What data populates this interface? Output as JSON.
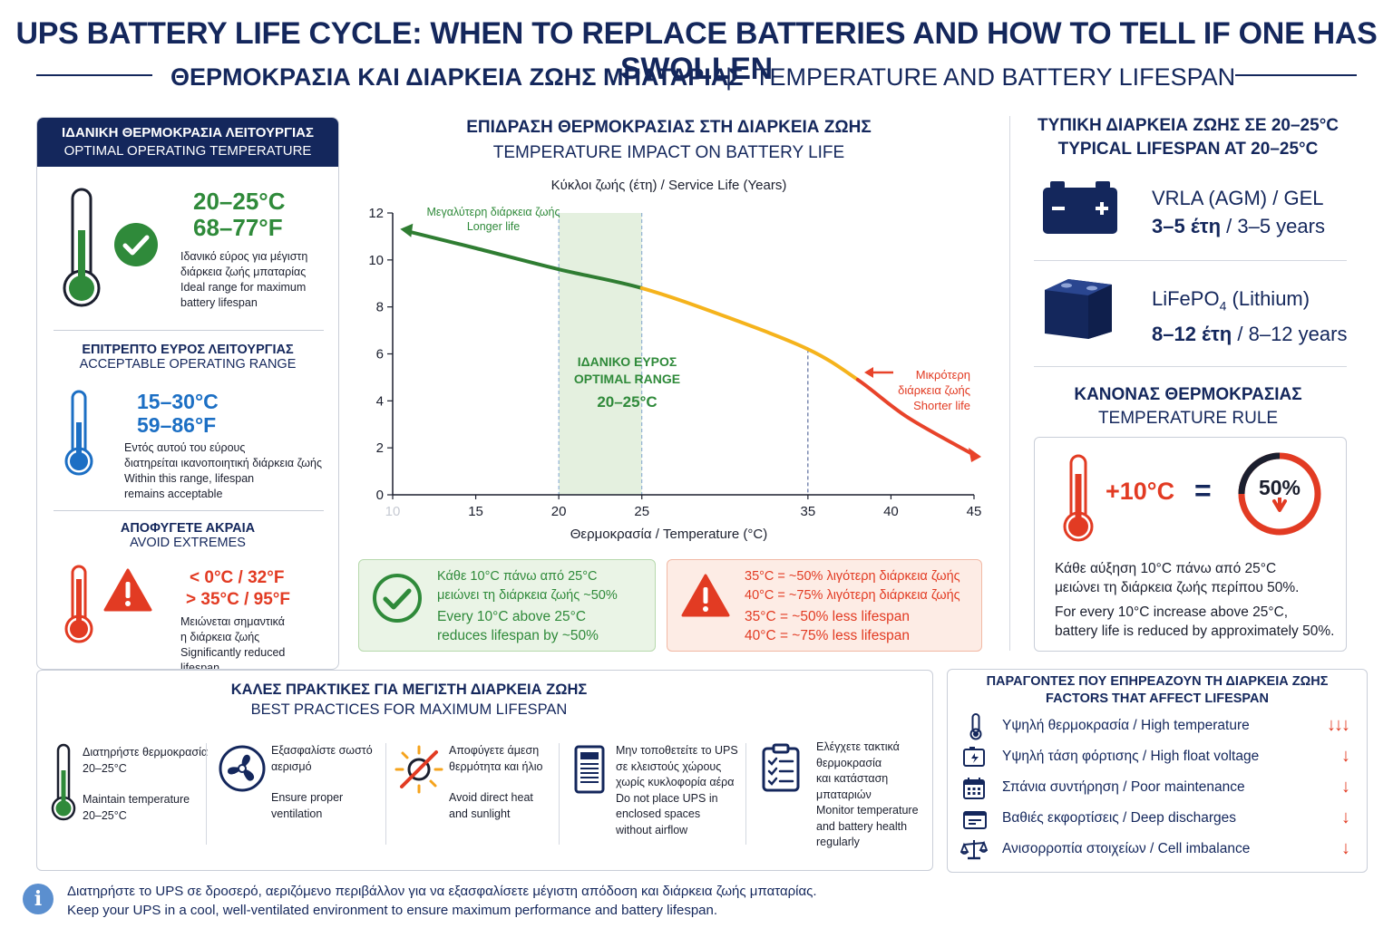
{
  "header": {
    "title": "UPS BATTERY LIFE CYCLE: WHEN TO REPLACE BATTERIES AND HOW TO TELL IF ONE HAS SWOLLEN",
    "subtitle_gr": "ΘΕΡΜΟΚΡΑΣΙΑ ΚΑΙ ΔΙΑΡΚΕΙΑ ΖΩΗΣ ΜΠΑΤΑΡΙΑΣ",
    "subtitle_sep": "|",
    "subtitle_en": "TEMPERATURE AND BATTERY LIFESPAN"
  },
  "left_panel": {
    "header_gr": "ΙΔΑΝΙΚΗ ΘΕΡΜΟΚΡΑΣΙΑ ΛΕΙΤΟΥΡΓΙΑΣ",
    "header_en": "OPTIMAL OPERATING TEMPERATURE",
    "optimal": {
      "celsius": "20–25°C",
      "fahrenheit": "68–77°F",
      "desc_gr_1": "Ιδανικό εύρος για μέγιστη",
      "desc_gr_2": "διάρκεια ζωής μπαταρίας",
      "desc_en_1": "Ideal range for maximum",
      "desc_en_2": "battery lifespan"
    },
    "acceptable": {
      "title_gr": "ΕΠΙΤΡΕΠΤΟ ΕΥΡΟΣ ΛΕΙΤΟΥΡΓΙΑΣ",
      "title_en": "ACCEPTABLE OPERATING RANGE",
      "celsius": "15–30°C",
      "fahrenheit": "59–86°F",
      "desc_gr_1": "Εντός αυτού του εύρους",
      "desc_gr_2": "διατηρείται ικανοποιητική διάρκεια ζωής",
      "desc_en_1": "Within this range, lifespan",
      "desc_en_2": "remains acceptable"
    },
    "extremes": {
      "title_gr": "ΑΠΟΦΥΓΕΤΕ ΑΚΡΑΙΑ",
      "title_en": "AVOID EXTREMES",
      "low": "< 0°C / 32°F",
      "high": "> 35°C / 95°F",
      "desc_gr_1": "Μειώνεται σημαντικά",
      "desc_gr_2": "η διάρκεια ζωής",
      "desc_en_1": "Significantly reduced",
      "desc_en_2": "lifespan"
    }
  },
  "chart": {
    "title_gr": "ΕΠΙΔΡΑΣΗ ΘΕΡΜΟΚΡΑΣΙΑΣ ΣΤΗ ΔΙΑΡΚΕΙΑ ΖΩΗΣ",
    "title_en": "TEMPERATURE IMPACT ON BATTERY LIFE",
    "ylabel": "Κύκλοι ζωής (έτη) / Service Life (Years)",
    "xlabel": "Θερμοκρασία / Temperature (°C)",
    "longer_gr": "Μεγαλύτερη διάρκεια ζωής",
    "longer_en": "Longer life",
    "shorter_gr_1": "Μικρότερη",
    "shorter_gr_2": "διάρκεια ζωής",
    "shorter_en": "Shorter life",
    "band_gr": "ΙΔΑΝΙΚΟ ΕΥΡΟΣ",
    "band_en": "OPTIMAL RANGE",
    "band_range": "20–25°C"
  },
  "chart_data": {
    "type": "line",
    "title": "TEMPERATURE IMPACT ON BATTERY LIFE",
    "xlabel": "Θερμοκρασία / Temperature (°C)",
    "ylabel": "Κύκλοι ζωής (έτη) / Service Life (Years)",
    "xlim": [
      10,
      45
    ],
    "ylim": [
      0,
      12
    ],
    "xticks": [
      "10",
      "15",
      "20",
      "25",
      "35",
      "40",
      "45"
    ],
    "yticks": [
      "0",
      "2",
      "4",
      "6",
      "8",
      "10",
      "12"
    ],
    "x": [
      11,
      15,
      20,
      25,
      30,
      35,
      38,
      41,
      45
    ],
    "y": [
      11.2,
      10.5,
      9.6,
      8.8,
      7.6,
      6.2,
      4.9,
      3.3,
      1.7
    ],
    "highlight_band": [
      20,
      25
    ],
    "grid": false,
    "colors": {
      "cool": "#2f7d32",
      "warm": "#f5b31c",
      "hot": "#e8432a",
      "band": "#e4f0df"
    }
  },
  "info_green": {
    "gr_1": "Κάθε 10°C πάνω από 25°C",
    "gr_2": "μειώνει τη διάρκεια ζωής ~50%",
    "en_1": "Every 10°C above 25°C",
    "en_2": "reduces lifespan by ~50%"
  },
  "info_red": {
    "gr_1": "35°C = ~50% λιγότερη διάρκεια ζωής",
    "gr_2": "40°C = ~75% λιγότερη διάρκεια ζωής",
    "en_1": "35°C = ~50% less lifespan",
    "en_2": "40°C = ~75% less lifespan"
  },
  "typical": {
    "title_gr": "ΤΥΠΙΚΗ ΔΙΑΡΚΕΙΑ ΖΩΗΣ ΣΕ 20–25°C",
    "title_en": "TYPICAL LIFESPAN AT 20–25°C",
    "vrla_name": "VRLA (AGM) / GEL",
    "vrla_years": "3–5 έτη",
    "vrla_years_en": "/ 3–5 years",
    "lfp_name": "LiFePO",
    "lfp_sub": "4",
    "lfp_name_suffix": " (Lithium)",
    "lfp_years": "8–12 έτη",
    "lfp_years_en": "/ 8–12 years"
  },
  "rule": {
    "title_gr": "ΚΑΝΟΝΑΣ ΘΕΡΜΟΚΡΑΣΙΑΣ",
    "title_en": "TEMPERATURE RULE",
    "delta": "+10°C",
    "equals": "=",
    "percent": "50%",
    "gr_1": "Κάθε αύξηση 10°C πάνω από 25°C",
    "gr_2": "μειώνει τη διάρκεια ζωής περίπου 50%.",
    "en_1": "For every 10°C increase above 25°C,",
    "en_2": "battery life is reduced by approximately 50%."
  },
  "best_practices": {
    "title_gr": "ΚΑΛΕΣ ΠΡΑΚΤΙΚΕΣ ΓΙΑ ΜΕΓΙΣΤΗ ΔΙΑΡΚΕΙΑ ΖΩΗΣ",
    "title_en": "BEST PRACTICES FOR MAXIMUM LIFESPAN",
    "items": [
      {
        "icon": "thermometer-icon",
        "lines": [
          "Διατηρήστε θερμοκρασία",
          "20–25°C",
          "",
          "Maintain temperature",
          "20–25°C"
        ]
      },
      {
        "icon": "fan-icon",
        "lines": [
          "Εξασφαλίστε σωστό",
          "αερισμό",
          "",
          "Ensure proper",
          "ventilation"
        ]
      },
      {
        "icon": "no-sun-icon",
        "lines": [
          "Αποφύγετε άμεση",
          "θερμότητα και ήλιο",
          "",
          "Avoid direct heat",
          "and sunlight"
        ]
      },
      {
        "icon": "enclosed-cabinet-icon",
        "lines": [
          "Μην τοποθετείτε το UPS",
          "σε κλειστούς χώρους",
          "χωρίς κυκλοφορία αέρα",
          "Do not place UPS in",
          "enclosed spaces",
          "without airflow"
        ]
      },
      {
        "icon": "checklist-icon",
        "lines": [
          "Ελέγχετε τακτικά",
          "θερμοκρασία",
          "και κατάσταση",
          "μπαταριών",
          "Monitor temperature",
          "and battery health",
          "regularly"
        ]
      }
    ]
  },
  "factors": {
    "title_gr": "ΠΑΡΑΓΟΝΤΕΣ ΠΟΥ ΕΠΗΡΕΑΖΟΥΝ ΤΗ ΔΙΑΡΚΕΙΑ ΖΩΗΣ",
    "title_en": "FACTORS THAT AFFECT LIFESPAN",
    "items": [
      {
        "icon": "thermometer-icon",
        "label": "Υψηλή θερμοκρασία / High temperature",
        "arrows": "↓↓↓"
      },
      {
        "icon": "charger-icon",
        "label": "Υψηλή τάση φόρτισης / High float voltage",
        "arrows": "↓"
      },
      {
        "icon": "calendar-icon",
        "label": "Σπάνια συντήρηση / Poor maintenance",
        "arrows": "↓"
      },
      {
        "icon": "battery-drain-icon",
        "label": "Βαθιές εκφορτίσεις / Deep discharges",
        "arrows": "↓"
      },
      {
        "icon": "balance-scale-icon",
        "label": "Ανισορροπία στοιχείων / Cell imbalance",
        "arrows": "↓"
      }
    ]
  },
  "footer": {
    "icon": "i",
    "gr": "Διατηρήστε το UPS σε δροσερό, αεριζόμενο περιβάλλον για να εξασφαλίσετε μέγιστη απόδοση και διάρκεια ζωής μπαταρίας.",
    "en": "Keep your UPS in a cool, well-ventilated environment to ensure maximum performance and battery lifespan."
  }
}
